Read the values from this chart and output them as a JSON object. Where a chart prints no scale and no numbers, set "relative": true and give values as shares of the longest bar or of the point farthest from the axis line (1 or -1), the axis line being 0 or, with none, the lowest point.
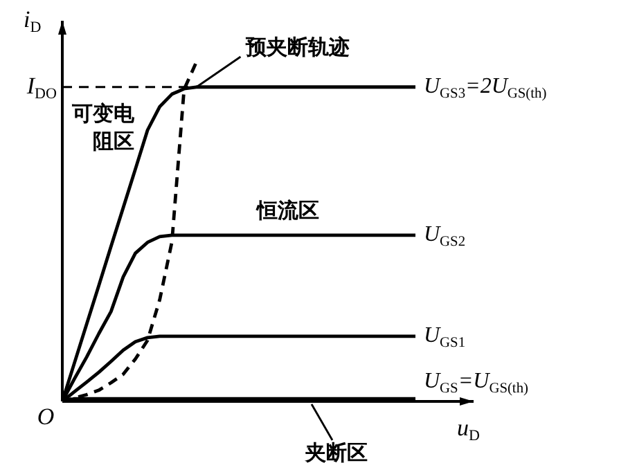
{
  "chart_data": {
    "type": "line",
    "relative": true,
    "xlabel": "u$_{D}$",
    "ylabel": "i$_{D}$",
    "legend": false,
    "marker": "none",
    "categories": [
      null,
      null,
      null,
      null,
      null,
      null,
      null,
      null,
      null,
      null,
      null,
      null,
      null,
      null,
      null,
      null,
      null,
      null,
      null,
      null,
      null,
      null,
      null,
      null,
      null,
      null,
      null,
      null,
      null,
      null
    ],
    "series": [
      {
        "name": "U$_{GS}$=U$_{GS(th)}$",
        "color": "#000000",
        "values": [
          0,
          0.008,
          0.008,
          0.008,
          0.008,
          0.008,
          0.008,
          0.008,
          0.008,
          0.008,
          0.008,
          0.008,
          0.008,
          0.008,
          0.008,
          0.008,
          0.008,
          0.008,
          0.008,
          0.008,
          0.008,
          0.008,
          0.008,
          0.008,
          0.008,
          0.008,
          0.008,
          0.008,
          0.008,
          0.008
        ]
      },
      {
        "name": "U$_{GS1}$",
        "color": "#000000",
        "values": [
          0,
          0.029,
          0.057,
          0.086,
          0.118,
          0.151,
          0.176,
          0.188,
          0.192,
          0.192,
          0.192,
          0.192,
          0.192,
          0.192,
          0.192,
          0.192,
          0.192,
          0.192,
          0.192,
          0.192,
          0.192,
          0.192,
          0.192,
          0.192,
          0.192,
          0.192,
          0.192,
          0.192,
          0.192,
          0.192
        ]
      },
      {
        "name": "U$_{GS2}$",
        "color": "#000000",
        "values": [
          0,
          0.067,
          0.131,
          0.2,
          0.265,
          0.367,
          0.437,
          0.469,
          0.486,
          0.49,
          0.49,
          0.49,
          0.49,
          0.49,
          0.49,
          0.49,
          0.49,
          0.49,
          0.49,
          0.49,
          0.49,
          0.49,
          0.49,
          0.49,
          0.49,
          0.49,
          0.49,
          0.49,
          0.49,
          0.49
        ]
      },
      {
        "name": "U$_{GS3}$=2U$_{GS(th)}$",
        "color": "#000000",
        "values": [
          0,
          0.114,
          0.228,
          0.342,
          0.457,
          0.571,
          0.685,
          0.8,
          0.869,
          0.906,
          0.922,
          0.927,
          0.927,
          0.927,
          0.927,
          0.927,
          0.927,
          0.927,
          0.927,
          0.927,
          0.927,
          0.927,
          0.927,
          0.927,
          0.927,
          0.927,
          0.927,
          0.927,
          0.927,
          0.927
        ]
      },
      {
        "name": "预夹断轨迹",
        "color": "#000000",
        "line_style": "dashed",
        "values": [
          0,
          0.01,
          0.02,
          0.033,
          0.055,
          0.08,
          0.125,
          0.18,
          0.3,
          0.47,
          0.92,
          1,
          null,
          null,
          null,
          null,
          null,
          null,
          null,
          null,
          null,
          null,
          null,
          null,
          null,
          null,
          null,
          null,
          null,
          null
        ]
      }
    ],
    "ref_lines": [
      {
        "axis": "y",
        "value": 0.927,
        "label": "I$_{DO}$",
        "line_style": "dashed"
      }
    ],
    "annotations": [
      "可变电阻区",
      "恒流区",
      "夹断区",
      "O"
    ]
  }
}
